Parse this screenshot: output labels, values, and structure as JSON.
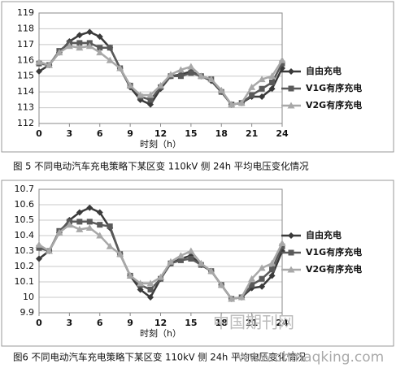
{
  "chart_data": [
    {
      "type": "line",
      "caption": "图 5 不同电动汽车充电策略下某区变 110kV 侧 24h 平均电压变化情况",
      "x_label": "时刻（h）",
      "x": [
        0,
        1,
        2,
        3,
        4,
        5,
        6,
        7,
        8,
        9,
        10,
        11,
        12,
        13,
        14,
        15,
        16,
        17,
        18,
        19,
        20,
        21,
        22,
        23,
        24
      ],
      "xlim": [
        0,
        24
      ],
      "xticks": [
        0,
        3,
        6,
        9,
        12,
        15,
        18,
        21,
        24
      ],
      "ylim": [
        112,
        119
      ],
      "yticks": [
        112,
        113,
        114,
        115,
        116,
        117,
        118,
        119
      ],
      "grid": true,
      "legend": "right",
      "series": [
        {
          "name": "自由充电",
          "color": "#3a3a3a",
          "marker": "diamond",
          "values": [
            115.3,
            115.7,
            116.5,
            117.2,
            117.6,
            117.8,
            117.5,
            116.8,
            115.5,
            114.3,
            113.5,
            113.2,
            114.2,
            115.0,
            115.1,
            115.3,
            115.0,
            114.7,
            114.0,
            113.2,
            113.3,
            113.7,
            113.7,
            114.2,
            115.5
          ]
        },
        {
          "name": "V1G有序充电",
          "color": "#5a5a5a",
          "marker": "square",
          "values": [
            115.8,
            115.7,
            116.6,
            117.1,
            117.1,
            117.1,
            116.8,
            116.8,
            115.5,
            114.4,
            113.7,
            113.5,
            114.3,
            115.0,
            115.0,
            115.2,
            115.0,
            114.8,
            114.0,
            113.2,
            113.3,
            113.8,
            114.2,
            114.6,
            115.8
          ]
        },
        {
          "name": "V2G有序充电",
          "color": "#a8a8a8",
          "marker": "triangle",
          "values": [
            115.9,
            115.7,
            116.5,
            116.9,
            116.8,
            116.9,
            116.5,
            116.0,
            115.5,
            114.4,
            113.8,
            113.8,
            114.4,
            115.1,
            115.4,
            115.6,
            115.0,
            114.8,
            114.1,
            113.2,
            113.3,
            114.3,
            114.8,
            115.0,
            116.0
          ]
        }
      ]
    },
    {
      "type": "line",
      "caption": "图6 不同电动汽车充电策略下某区变 110kV 侧 24h 平均电压变化情况",
      "x_label": "时刻（h）",
      "x": [
        0,
        1,
        2,
        3,
        4,
        5,
        6,
        7,
        8,
        9,
        10,
        11,
        12,
        13,
        14,
        15,
        16,
        17,
        18,
        19,
        20,
        21,
        22,
        23,
        24
      ],
      "xlim": [
        0,
        24
      ],
      "xticks": [
        0,
        3,
        6,
        9,
        12,
        15,
        18,
        21,
        24
      ],
      "ylim": [
        9.9,
        10.7
      ],
      "yticks": [
        9.9,
        10,
        10.1,
        10.2,
        10.3,
        10.4,
        10.5,
        10.6,
        10.7
      ],
      "grid": true,
      "legend": "right",
      "series": [
        {
          "name": "自由充电",
          "color": "#3a3a3a",
          "marker": "diamond",
          "values": [
            10.25,
            10.3,
            10.42,
            10.5,
            10.55,
            10.58,
            10.55,
            10.45,
            10.28,
            10.14,
            10.05,
            10.0,
            10.12,
            10.22,
            10.25,
            10.27,
            10.21,
            10.17,
            10.08,
            9.99,
            10.0,
            10.06,
            10.07,
            10.14,
            10.3
          ]
        },
        {
          "name": "V1G有序充电",
          "color": "#5a5a5a",
          "marker": "square",
          "values": [
            10.32,
            10.3,
            10.43,
            10.49,
            10.49,
            10.49,
            10.47,
            10.46,
            10.28,
            10.14,
            10.08,
            10.05,
            10.12,
            10.22,
            10.24,
            10.25,
            10.21,
            10.17,
            10.08,
            9.99,
            10.0,
            10.08,
            10.12,
            10.18,
            10.33
          ]
        },
        {
          "name": "V2G有序充电",
          "color": "#a8a8a8",
          "marker": "triangle",
          "values": [
            10.34,
            10.3,
            10.42,
            10.47,
            10.44,
            10.45,
            10.4,
            10.33,
            10.28,
            10.14,
            10.09,
            10.09,
            10.13,
            10.23,
            10.27,
            10.3,
            10.22,
            10.17,
            10.08,
            9.99,
            10.0,
            10.12,
            10.19,
            10.22,
            10.35
          ]
        }
      ]
    }
  ],
  "watermark": [
    "中国期刊网",
    "www.chinaqking.com"
  ]
}
